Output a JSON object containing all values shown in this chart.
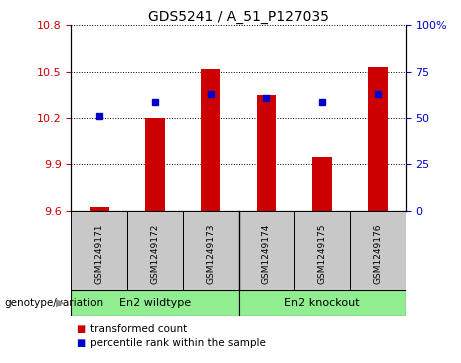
{
  "title": "GDS5241 / A_51_P127035",
  "samples": [
    "GSM1249171",
    "GSM1249172",
    "GSM1249173",
    "GSM1249174",
    "GSM1249175",
    "GSM1249176"
  ],
  "bar_base": 9.6,
  "bar_tops": [
    9.625,
    10.2,
    10.52,
    10.35,
    9.95,
    10.53
  ],
  "blue_dot_left_values": [
    10.21,
    10.305,
    10.355,
    10.33,
    10.305,
    10.355
  ],
  "ylim_left": [
    9.6,
    10.8
  ],
  "ylim_right": [
    0,
    100
  ],
  "yticks_left": [
    9.6,
    9.9,
    10.2,
    10.5,
    10.8
  ],
  "yticks_right": [
    0,
    25,
    50,
    75,
    100
  ],
  "ytick_labels_right": [
    "0",
    "25",
    "50",
    "75",
    "100%"
  ],
  "bar_color": "#cc0000",
  "dot_color": "#0000cc",
  "bar_width": 0.35,
  "group1_label": "En2 wildtype",
  "group2_label": "En2 knockout",
  "group_color": "#90ee90",
  "genotype_label": "genotype/variation",
  "legend_red": "transformed count",
  "legend_blue": "percentile rank within the sample",
  "tick_color_left": "#cc0000",
  "tick_color_right": "#0000cc",
  "sample_box_color": "#c8c8c8",
  "divider_color": "#000000"
}
